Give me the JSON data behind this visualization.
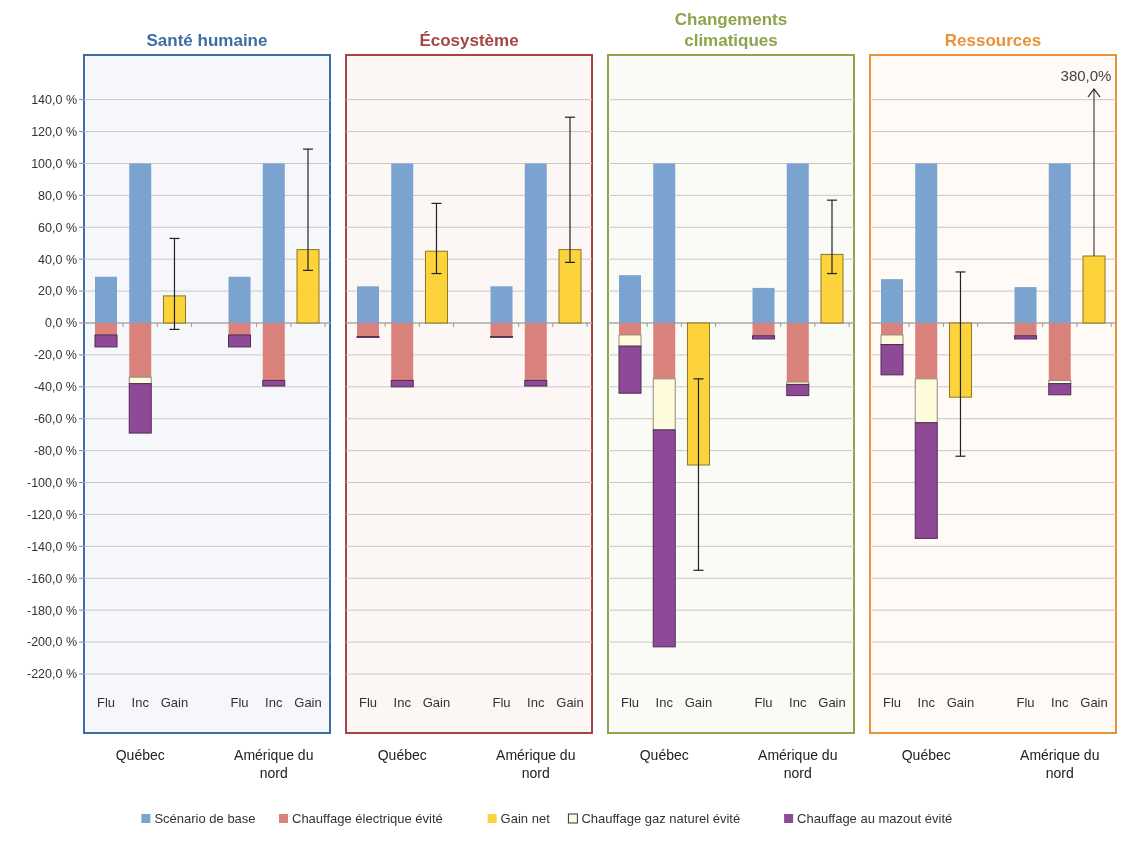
{
  "chart_data": [
    {
      "type": "bar",
      "stacked": true,
      "title": "Santé humaine",
      "categories": [
        "Flu",
        "Inc",
        "Gain",
        "Flu",
        "Inc",
        "Gain"
      ],
      "annotations": [
        "Québec",
        "Amérique du nord"
      ],
      "ylim": [
        -257,
        168
      ],
      "yticks": [
        {
          "value": 140,
          "label": "140,0 %"
        },
        {
          "value": 120,
          "label": "120,0 %"
        },
        {
          "value": 100,
          "label": "100,0 %"
        },
        {
          "value": 80,
          "label": "80,0 %"
        },
        {
          "value": 60,
          "label": "60,0 %"
        },
        {
          "value": 40,
          "label": "40,0 %"
        },
        {
          "value": 20,
          "label": "20,0 %"
        },
        {
          "value": 0,
          "label": "0,0 %"
        },
        {
          "value": -20,
          "label": "-20,0 %"
        },
        {
          "value": -40,
          "label": "-40,0 %"
        },
        {
          "value": -60,
          "label": "-60,0 %"
        },
        {
          "value": -80,
          "label": "-80,0 %"
        },
        {
          "value": -100,
          "label": "-100,0 %"
        },
        {
          "value": -120,
          "label": "-120,0 %"
        },
        {
          "value": -140,
          "label": "-140,0 %"
        },
        {
          "value": -160,
          "label": "-160,0 %"
        },
        {
          "value": -180,
          "label": "-180,0 %"
        },
        {
          "value": -200,
          "label": "-200,0 %"
        },
        {
          "value": -220,
          "label": "-220,0 %"
        }
      ],
      "grid": "y",
      "legend": "bottom",
      "series": [
        {
          "name": "Scénario de base",
          "color": "#7ba3d0",
          "values": [
            29,
            100,
            null,
            29,
            100,
            null
          ]
        },
        {
          "name": "Chauffage électrique évité",
          "color": "#d9827c",
          "values": [
            -7.5,
            -34,
            null,
            -7.5,
            -36,
            null
          ]
        },
        {
          "name": "Gain net",
          "color": "#fcd33a",
          "values": [
            null,
            null,
            17,
            null,
            null,
            46
          ],
          "errors": [
            null,
            null,
            [
              -4,
              53
            ],
            null,
            null,
            [
              33,
              109
            ]
          ]
        },
        {
          "name": "Chauffage gaz naturel évité",
          "color": "#fdfbdc",
          "values": [
            null,
            -4,
            null,
            null,
            null,
            null
          ]
        },
        {
          "name": "Chauffage au mazout évité",
          "color": "#8e4a97",
          "values": [
            -7.5,
            -31,
            null,
            -7.5,
            -3.5,
            null
          ]
        }
      ]
    },
    {
      "type": "bar",
      "stacked": true,
      "title": "Écosystème",
      "categories": [
        "Flu",
        "Inc",
        "Gain",
        "Flu",
        "Inc",
        "Gain"
      ],
      "annotations": [
        "Québec",
        "Amérique du nord"
      ],
      "ylim": [
        -257,
        168
      ],
      "yticks": [
        140,
        120,
        100,
        80,
        60,
        40,
        20,
        0,
        -20,
        -40,
        -60,
        -80,
        -100,
        -120,
        -140,
        -160,
        -180,
        -200,
        -220
      ],
      "grid": "y",
      "tick_labels": "x",
      "series": [
        {
          "color": "#7ba3d0",
          "values": [
            23,
            100,
            null,
            23,
            100,
            null
          ]
        },
        {
          "color": "#d9827c",
          "values": [
            -8.5,
            -36,
            null,
            -8.5,
            -36,
            null
          ]
        },
        {
          "color": "#fcd33a",
          "values": [
            null,
            null,
            45,
            null,
            null,
            46
          ],
          "errors": [
            null,
            null,
            [
              31,
              75
            ],
            null,
            null,
            [
              38,
              129
            ]
          ]
        },
        {
          "color": "#8e4a97",
          "values": [
            -0.5,
            -4,
            null,
            -0.5,
            -3.5,
            null
          ]
        }
      ]
    },
    {
      "type": "bar",
      "stacked": true,
      "title": "Changements climatiques",
      "categories": [
        "Flu",
        "Inc",
        "Gain",
        "Flu",
        "Inc",
        "Gain"
      ],
      "annotations": [
        "Québec",
        "Amérique du nord"
      ],
      "ylim": [
        -257,
        168
      ],
      "yticks": [
        140,
        120,
        100,
        80,
        60,
        40,
        20,
        0,
        -20,
        -40,
        -60,
        -80,
        -100,
        -120,
        -140,
        -160,
        -180,
        -200,
        -220
      ],
      "grid": "y",
      "tick_labels": "x",
      "series": [
        {
          "color": "#7ba3d0",
          "values": [
            30,
            100,
            null,
            22,
            100,
            null
          ]
        },
        {
          "color": "#d9827c",
          "values": [
            -7.5,
            -35,
            null,
            -8,
            -37,
            null
          ]
        },
        {
          "color": "#fcd33a",
          "values": [
            null,
            null,
            -89,
            null,
            null,
            43
          ],
          "errors": [
            null,
            null,
            [
              -155,
              -35
            ],
            null,
            null,
            [
              31,
              77
            ]
          ]
        },
        {
          "color": "#fdfbdc",
          "values": [
            -7,
            -32,
            null,
            null,
            -1.5,
            null
          ]
        },
        {
          "color": "#8e4a97",
          "values": [
            -29.5,
            -136,
            null,
            -2,
            -7,
            null
          ]
        }
      ]
    },
    {
      "type": "bar",
      "stacked": true,
      "title": "Ressources",
      "categories": [
        "Flu",
        "Inc",
        "Gain",
        "Flu",
        "Inc",
        "Gain"
      ],
      "annotations": [
        "Québec",
        "Amérique du nord",
        "380,0%"
      ],
      "ylim": [
        -257,
        168
      ],
      "yticks": [
        140,
        120,
        100,
        80,
        60,
        40,
        20,
        0,
        -20,
        -40,
        -60,
        -80,
        -100,
        -120,
        -140,
        -160,
        -180,
        -200,
        -220
      ],
      "grid": "y",
      "tick_labels": "x",
      "series": [
        {
          "color": "#7ba3d0",
          "values": [
            27.5,
            100,
            null,
            22.5,
            100,
            null
          ]
        },
        {
          "color": "#d9827c",
          "values": [
            -7.5,
            -35,
            null,
            -8,
            -36,
            null
          ]
        },
        {
          "color": "#fcd33a",
          "values": [
            null,
            null,
            -46.5,
            null,
            null,
            42
          ],
          "errors": [
            null,
            null,
            [
              -83.5,
              32
            ],
            null,
            null,
            null
          ]
        },
        {
          "color": "#fdfbdc",
          "values": [
            -6,
            -27.5,
            null,
            null,
            -2,
            null
          ]
        },
        {
          "color": "#8e4a97",
          "values": [
            -19,
            -72.5,
            null,
            -2,
            -7,
            null
          ]
        }
      ]
    }
  ]
}
